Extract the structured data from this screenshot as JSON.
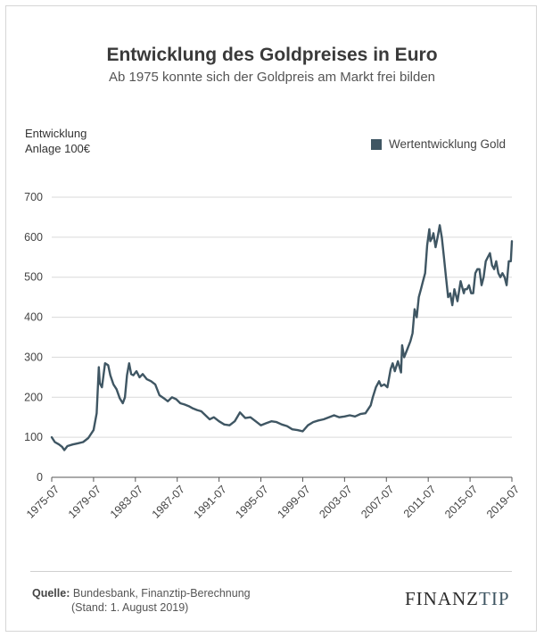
{
  "chart_data": {
    "type": "line",
    "title": "Entwicklung des Goldpreises in Euro",
    "subtitle": "Ab 1975 konnte sich der Goldpreis am Markt frei bilden",
    "ylabel_lines": [
      "Entwicklung",
      "Anlage 100€"
    ],
    "xlabel": "",
    "ylim": [
      0,
      700
    ],
    "yticks": [
      "0",
      "100",
      "200",
      "300",
      "400",
      "500",
      "600",
      "700"
    ],
    "ytick_values": [
      0,
      100,
      200,
      300,
      400,
      500,
      600,
      700
    ],
    "xlim": [
      1975.5,
      2019.5
    ],
    "xticks": [
      "1975-07",
      "1979-07",
      "1983-07",
      "1987-07",
      "1991-07",
      "1995-07",
      "1999-07",
      "2003-07",
      "2007-07",
      "2011-07",
      "2015-07",
      "2019-07"
    ],
    "xtick_values": [
      1975.5,
      1979.5,
      1983.5,
      1987.5,
      1991.5,
      1995.5,
      1999.5,
      2003.5,
      2007.5,
      2011.5,
      2015.5,
      2019.5
    ],
    "grid": true,
    "legend_position": "top-right",
    "series": [
      {
        "name": "Wertentwicklung Gold",
        "color": "#3f5663",
        "x": [
          1975.5,
          1975.8,
          1976.2,
          1976.5,
          1976.7,
          1977.0,
          1977.5,
          1978.0,
          1978.5,
          1979.0,
          1979.5,
          1979.8,
          1980.0,
          1980.1,
          1980.3,
          1980.6,
          1980.9,
          1981.1,
          1981.4,
          1981.7,
          1982.0,
          1982.3,
          1982.5,
          1982.7,
          1982.9,
          1983.1,
          1983.3,
          1983.6,
          1983.9,
          1984.2,
          1984.6,
          1985.0,
          1985.4,
          1985.8,
          1986.2,
          1986.6,
          1987.0,
          1987.4,
          1987.8,
          1988.2,
          1988.6,
          1989.0,
          1989.4,
          1989.8,
          1990.2,
          1990.6,
          1991.0,
          1991.5,
          1992.0,
          1992.5,
          1993.0,
          1993.5,
          1994.0,
          1994.5,
          1995.0,
          1995.5,
          1996.0,
          1996.5,
          1997.0,
          1997.5,
          1998.0,
          1998.5,
          1999.0,
          1999.5,
          2000.0,
          2000.5,
          2001.0,
          2001.5,
          2002.0,
          2002.5,
          2003.0,
          2003.5,
          2004.0,
          2004.5,
          2005.0,
          2005.5,
          2006.0,
          2006.2,
          2006.5,
          2006.8,
          2007.0,
          2007.3,
          2007.6,
          2007.9,
          2008.1,
          2008.3,
          2008.6,
          2008.9,
          2009.0,
          2009.2,
          2009.5,
          2009.8,
          2010.0,
          2010.2,
          2010.4,
          2010.6,
          2010.8,
          2011.0,
          2011.2,
          2011.4,
          2011.6,
          2011.7,
          2011.9,
          2012.0,
          2012.2,
          2012.4,
          2012.6,
          2012.8,
          2013.0,
          2013.2,
          2013.4,
          2013.6,
          2013.8,
          2014.0,
          2014.3,
          2014.6,
          2014.9,
          2015.0,
          2015.2,
          2015.4,
          2015.6,
          2015.8,
          2016.0,
          2016.2,
          2016.4,
          2016.6,
          2016.8,
          2017.0,
          2017.2,
          2017.4,
          2017.6,
          2017.8,
          2018.0,
          2018.2,
          2018.4,
          2018.6,
          2018.8,
          2019.0,
          2019.2,
          2019.4,
          2019.5
        ],
        "values": [
          100,
          88,
          82,
          76,
          68,
          78,
          82,
          85,
          88,
          98,
          118,
          160,
          275,
          235,
          225,
          285,
          280,
          255,
          232,
          220,
          198,
          185,
          200,
          255,
          285,
          258,
          255,
          265,
          250,
          258,
          245,
          240,
          232,
          205,
          198,
          190,
          200,
          195,
          185,
          182,
          178,
          172,
          168,
          165,
          155,
          145,
          150,
          140,
          132,
          130,
          140,
          162,
          148,
          150,
          140,
          130,
          135,
          140,
          138,
          132,
          128,
          120,
          118,
          115,
          130,
          138,
          142,
          145,
          150,
          155,
          150,
          152,
          155,
          152,
          158,
          160,
          180,
          200,
          225,
          240,
          228,
          232,
          225,
          270,
          285,
          265,
          290,
          262,
          330,
          300,
          320,
          340,
          360,
          420,
          400,
          450,
          470,
          490,
          510,
          580,
          620,
          590,
          600,
          610,
          575,
          600,
          630,
          600,
          550,
          500,
          450,
          460,
          430,
          470,
          440,
          490,
          460,
          470,
          470,
          480,
          460,
          460,
          510,
          520,
          520,
          480,
          500,
          540,
          550,
          560,
          530,
          520,
          540,
          510,
          500,
          510,
          500,
          480,
          540,
          540,
          590
        ]
      }
    ]
  },
  "source": {
    "label": "Quelle:",
    "line1": "Bundesbank, Finanztip-Berechnung",
    "line2": "(Stand: 1. August 2019)"
  },
  "logo": {
    "part1": "FINANZ",
    "part2": "TIP"
  }
}
